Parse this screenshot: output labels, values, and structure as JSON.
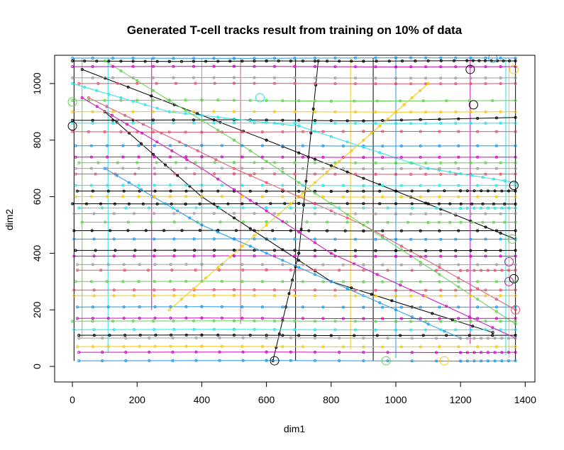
{
  "chart_data": {
    "type": "line",
    "title": "Generated T-cell tracks result from training on 10% of data",
    "xlabel": "dim1",
    "ylabel": "dim2",
    "xlim": [
      -55,
      1430
    ],
    "ylim": [
      -55,
      1100
    ],
    "xticks": [
      0,
      200,
      400,
      600,
      800,
      1000,
      1200,
      1400
    ],
    "yticks": [
      0,
      200,
      400,
      600,
      800,
      1000
    ],
    "grid": false,
    "legend": "none",
    "colors": [
      "#000000",
      "#DF536B",
      "#61D04F",
      "#2297E6",
      "#28E2E5",
      "#CD0BBC",
      "#F5C710",
      "#9E9E9E"
    ],
    "series": [
      {
        "color": "#000000",
        "points": [
          [
            0,
            1080
          ],
          [
            300,
            1078
          ],
          [
            600,
            1080
          ],
          [
            900,
            1079
          ],
          [
            1220,
            1081
          ],
          [
            1370,
            1080
          ]
        ]
      },
      {
        "color": "#000000",
        "points": [
          [
            15,
            620
          ],
          [
            400,
            620
          ],
          [
            800,
            619
          ],
          [
            1200,
            621
          ],
          [
            1370,
            620
          ]
        ]
      },
      {
        "color": "#000000",
        "points": [
          [
            0,
            575
          ],
          [
            350,
            574
          ],
          [
            700,
            576
          ],
          [
            1100,
            575
          ],
          [
            1370,
            574
          ]
        ]
      },
      {
        "color": "#000000",
        "points": [
          [
            5,
            480
          ],
          [
            450,
            481
          ],
          [
            900,
            479
          ],
          [
            1370,
            480
          ]
        ]
      },
      {
        "color": "#000000",
        "points": [
          [
            10,
            410
          ],
          [
            500,
            411
          ],
          [
            1000,
            409
          ],
          [
            1370,
            410
          ]
        ]
      },
      {
        "color": "#000000",
        "points": [
          [
            20,
            110
          ],
          [
            400,
            111
          ],
          [
            800,
            109
          ],
          [
            1370,
            110
          ]
        ]
      },
      {
        "color": "#000000",
        "points": [
          [
            0,
            870
          ],
          [
            500,
            872
          ],
          [
            900,
            868
          ],
          [
            1370,
            880
          ]
        ]
      },
      {
        "color": "#000000",
        "points": [
          [
            30,
            1050
          ],
          [
            600,
            800
          ],
          [
            1000,
            620
          ],
          [
            1370,
            450
          ]
        ]
      },
      {
        "color": "#000000",
        "points": [
          [
            100,
            900
          ],
          [
            400,
            600
          ],
          [
            800,
            300
          ],
          [
            1300,
            120
          ]
        ]
      },
      {
        "color": "#000000",
        "points": [
          [
            620,
            20
          ],
          [
            700,
            400
          ],
          [
            760,
            1080
          ]
        ]
      },
      {
        "color": "#DF536B",
        "points": [
          [
            10,
            680
          ],
          [
            500,
            681
          ],
          [
            1000,
            679
          ],
          [
            1370,
            680
          ]
        ]
      },
      {
        "color": "#DF536B",
        "points": [
          [
            0,
            830
          ],
          [
            400,
            828
          ],
          [
            900,
            831
          ],
          [
            1370,
            830
          ]
        ]
      },
      {
        "color": "#DF536B",
        "points": [
          [
            15,
            340
          ],
          [
            600,
            341
          ],
          [
            1200,
            339
          ],
          [
            1370,
            340
          ]
        ]
      },
      {
        "color": "#DF536B",
        "points": [
          [
            5,
            270
          ],
          [
            500,
            271
          ],
          [
            1000,
            269
          ],
          [
            1370,
            270
          ]
        ]
      },
      {
        "color": "#DF536B",
        "points": [
          [
            20,
            1000
          ],
          [
            500,
            1001
          ],
          [
            1000,
            999
          ],
          [
            1370,
            1000
          ]
        ]
      },
      {
        "color": "#DF536B",
        "points": [
          [
            50,
            950
          ],
          [
            500,
            700
          ],
          [
            900,
            500
          ],
          [
            1370,
            200
          ]
        ]
      },
      {
        "color": "#61D04F",
        "points": [
          [
            0,
            940
          ],
          [
            400,
            942
          ],
          [
            800,
            938
          ],
          [
            1370,
            940
          ]
        ]
      },
      {
        "color": "#61D04F",
        "points": [
          [
            10,
            300
          ],
          [
            400,
            301
          ],
          [
            900,
            299
          ],
          [
            1370,
            300
          ]
        ]
      },
      {
        "color": "#61D04F",
        "points": [
          [
            0,
            160
          ],
          [
            500,
            161
          ],
          [
            1000,
            159
          ],
          [
            1370,
            160
          ]
        ]
      },
      {
        "color": "#61D04F",
        "points": [
          [
            20,
            720
          ],
          [
            500,
            721
          ],
          [
            1000,
            719
          ],
          [
            1370,
            720
          ]
        ]
      },
      {
        "color": "#61D04F",
        "points": [
          [
            30,
            510
          ],
          [
            600,
            511
          ],
          [
            1100,
            509
          ],
          [
            1370,
            510
          ]
        ]
      },
      {
        "color": "#61D04F",
        "points": [
          [
            100,
            1080
          ],
          [
            500,
            800
          ],
          [
            900,
            500
          ],
          [
            1370,
            150
          ]
        ]
      },
      {
        "color": "#2297E6",
        "points": [
          [
            0,
            1090
          ],
          [
            500,
            1089
          ],
          [
            1000,
            1091
          ],
          [
            1370,
            1090
          ]
        ]
      },
      {
        "color": "#2297E6",
        "points": [
          [
            10,
            780
          ],
          [
            400,
            781
          ],
          [
            900,
            779
          ],
          [
            1370,
            780
          ]
        ]
      },
      {
        "color": "#2297E6",
        "points": [
          [
            5,
            450
          ],
          [
            500,
            451
          ],
          [
            1000,
            449
          ],
          [
            1370,
            450
          ]
        ]
      },
      {
        "color": "#2297E6",
        "points": [
          [
            15,
            210
          ],
          [
            400,
            211
          ],
          [
            900,
            209
          ],
          [
            1370,
            210
          ]
        ]
      },
      {
        "color": "#2297E6",
        "points": [
          [
            20,
            20
          ],
          [
            600,
            21
          ],
          [
            1200,
            19
          ],
          [
            1370,
            20
          ]
        ]
      },
      {
        "color": "#2297E6",
        "points": [
          [
            100,
            700
          ],
          [
            400,
            500
          ],
          [
            800,
            300
          ],
          [
            1200,
            100
          ]
        ]
      },
      {
        "color": "#28E2E5",
        "points": [
          [
            0,
            860
          ],
          [
            500,
            861
          ],
          [
            1000,
            859
          ],
          [
            1370,
            860
          ]
        ]
      },
      {
        "color": "#28E2E5",
        "points": [
          [
            10,
            640
          ],
          [
            400,
            641
          ],
          [
            900,
            639
          ],
          [
            1370,
            640
          ]
        ]
      },
      {
        "color": "#28E2E5",
        "points": [
          [
            20,
            560
          ],
          [
            600,
            561
          ],
          [
            1200,
            559
          ],
          [
            1370,
            560
          ]
        ]
      },
      {
        "color": "#28E2E5",
        "points": [
          [
            5,
            130
          ],
          [
            500,
            131
          ],
          [
            1000,
            129
          ],
          [
            1370,
            130
          ]
        ]
      },
      {
        "color": "#28E2E5",
        "points": [
          [
            0,
            1000
          ],
          [
            300,
            900
          ],
          [
            700,
            850
          ],
          [
            1100,
            700
          ],
          [
            1370,
            650
          ]
        ]
      },
      {
        "color": "#CD0BBC",
        "points": [
          [
            0,
            1060
          ],
          [
            500,
            1061
          ],
          [
            1000,
            1059
          ],
          [
            1370,
            1060
          ]
        ]
      },
      {
        "color": "#CD0BBC",
        "points": [
          [
            10,
            740
          ],
          [
            400,
            741
          ],
          [
            900,
            739
          ],
          [
            1370,
            740
          ]
        ]
      },
      {
        "color": "#CD0BBC",
        "points": [
          [
            5,
            390
          ],
          [
            500,
            391
          ],
          [
            1000,
            389
          ],
          [
            1370,
            390
          ]
        ]
      },
      {
        "color": "#CD0BBC",
        "points": [
          [
            15,
            170
          ],
          [
            400,
            171
          ],
          [
            900,
            169
          ],
          [
            1370,
            170
          ]
        ]
      },
      {
        "color": "#CD0BBC",
        "points": [
          [
            20,
            50
          ],
          [
            600,
            51
          ],
          [
            1200,
            49
          ],
          [
            1370,
            50
          ]
        ]
      },
      {
        "color": "#CD0BBC",
        "points": [
          [
            30,
            950
          ],
          [
            400,
            700
          ],
          [
            800,
            400
          ],
          [
            1370,
            100
          ]
        ]
      },
      {
        "color": "#F5C710",
        "points": [
          [
            0,
            900
          ],
          [
            500,
            901
          ],
          [
            1000,
            899
          ],
          [
            1370,
            900
          ]
        ]
      },
      {
        "color": "#F5C710",
        "points": [
          [
            10,
            600
          ],
          [
            400,
            601
          ],
          [
            900,
            599
          ],
          [
            1370,
            600
          ]
        ]
      },
      {
        "color": "#F5C710",
        "points": [
          [
            5,
            250
          ],
          [
            500,
            251
          ],
          [
            1000,
            249
          ],
          [
            1370,
            250
          ]
        ]
      },
      {
        "color": "#F5C710",
        "points": [
          [
            15,
            70
          ],
          [
            400,
            71
          ],
          [
            900,
            69
          ],
          [
            1370,
            70
          ]
        ]
      },
      {
        "color": "#F5C710",
        "points": [
          [
            300,
            200
          ],
          [
            600,
            500
          ],
          [
            900,
            800
          ],
          [
            1100,
            1000
          ]
        ]
      },
      {
        "color": "#9E9E9E",
        "points": [
          [
            0,
            1020
          ],
          [
            500,
            1021
          ],
          [
            1000,
            1019
          ],
          [
            1370,
            1020
          ]
        ]
      },
      {
        "color": "#9E9E9E",
        "points": [
          [
            10,
            700
          ],
          [
            400,
            701
          ],
          [
            900,
            699
          ],
          [
            1370,
            700
          ]
        ]
      },
      {
        "color": "#9E9E9E",
        "points": [
          [
            5,
            540
          ],
          [
            500,
            541
          ],
          [
            1000,
            539
          ],
          [
            1370,
            540
          ]
        ]
      },
      {
        "color": "#9E9E9E",
        "points": [
          [
            15,
            360
          ],
          [
            400,
            361
          ],
          [
            900,
            359
          ],
          [
            1370,
            360
          ]
        ]
      },
      {
        "color": "#9E9E9E",
        "points": [
          [
            20,
            100
          ],
          [
            600,
            101
          ],
          [
            1200,
            99
          ],
          [
            1370,
            100
          ]
        ]
      }
    ],
    "verticals": [
      {
        "color": "#000000",
        "x": 5,
        "y": [
          20,
          1090
        ]
      },
      {
        "color": "#000000",
        "x": 690,
        "y": [
          20,
          1090
        ]
      },
      {
        "color": "#000000",
        "x": 930,
        "y": [
          20,
          1090
        ]
      },
      {
        "color": "#000000",
        "x": 1370,
        "y": [
          20,
          1090
        ]
      },
      {
        "color": "#61D04F",
        "x": 30,
        "y": [
          100,
          1090
        ]
      },
      {
        "color": "#2297E6",
        "x": 1000,
        "y": [
          30,
          1090
        ]
      },
      {
        "color": "#28E2E5",
        "x": 110,
        "y": [
          50,
          1090
        ]
      },
      {
        "color": "#28E2E5",
        "x": 1340,
        "y": [
          40,
          1090
        ]
      },
      {
        "color": "#CD0BBC",
        "x": 245,
        "y": [
          200,
          1090
        ]
      },
      {
        "color": "#CD0BBC",
        "x": 1230,
        "y": [
          80,
          1090
        ]
      },
      {
        "color": "#F5C710",
        "x": 860,
        "y": [
          60,
          1090
        ]
      },
      {
        "color": "#F5C710",
        "x": 1350,
        "y": [
          30,
          1090
        ]
      },
      {
        "color": "#DF536B",
        "x": 520,
        "y": [
          150,
          1090
        ]
      },
      {
        "color": "#9E9E9E",
        "x": 400,
        "y": [
          300,
          1090
        ]
      }
    ],
    "circles": [
      {
        "color": "#000000",
        "x": 0,
        "y": 850
      },
      {
        "color": "#000000",
        "x": 625,
        "y": 20
      },
      {
        "color": "#000000",
        "x": 1365,
        "y": 310
      },
      {
        "color": "#000000",
        "x": 1365,
        "y": 640
      },
      {
        "color": "#000000",
        "x": 1230,
        "y": 1050
      },
      {
        "color": "#000000",
        "x": 1240,
        "y": 925
      },
      {
        "color": "#61D04F",
        "x": 970,
        "y": 20
      },
      {
        "color": "#61D04F",
        "x": 0,
        "y": 935
      },
      {
        "color": "#61D04F",
        "x": 1360,
        "y": 450
      },
      {
        "color": "#F5C710",
        "x": 1150,
        "y": 20
      },
      {
        "color": "#F5C710",
        "x": 1365,
        "y": 1050
      },
      {
        "color": "#CD0BBC",
        "x": 1350,
        "y": 370
      },
      {
        "color": "#CD0BBC",
        "x": 1350,
        "y": 300
      },
      {
        "color": "#DF536B",
        "x": 1370,
        "y": 200
      },
      {
        "color": "#2297E6",
        "x": 1300,
        "y": 1090
      },
      {
        "color": "#28E2E5",
        "x": 580,
        "y": 950
      }
    ]
  }
}
